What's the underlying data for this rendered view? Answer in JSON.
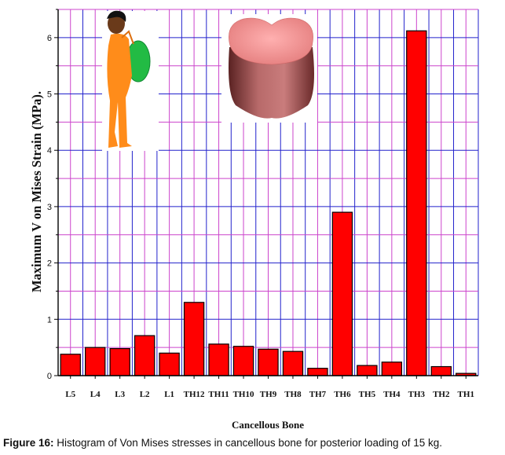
{
  "chart_data": {
    "type": "bar",
    "categories": [
      "L5",
      "L4",
      "L3",
      "L2",
      "L1",
      "TH12",
      "TH11",
      "TH10",
      "TH9",
      "TH8",
      "TH7",
      "TH6",
      "TH5",
      "TH4",
      "TH3",
      "TH2",
      "TH1"
    ],
    "values": [
      0.38,
      0.5,
      0.48,
      0.71,
      0.4,
      1.3,
      0.56,
      0.52,
      0.47,
      0.43,
      0.13,
      2.9,
      0.18,
      0.24,
      6.12,
      0.16,
      0.04
    ],
    "ylim": [
      0,
      6.5
    ],
    "yticks": [
      0,
      1,
      2,
      3,
      4,
      5,
      6
    ],
    "ylabel": "Maximum V on Mises Strain (MPa).",
    "xlabel": "Cancellous Bone",
    "bar_color": "#ff0000",
    "grid": true,
    "grid_colors": [
      "#2222cc",
      "#cc44cc"
    ]
  },
  "illustrations": {
    "person_icon": "person-carrying-backpack-icon",
    "vertebra_icon": "vertebral-body-icon"
  },
  "caption": {
    "label": "Figure 16:",
    "text": " Histogram of Von Mises stresses in cancellous bone for posterior loading of 15 kg."
  }
}
